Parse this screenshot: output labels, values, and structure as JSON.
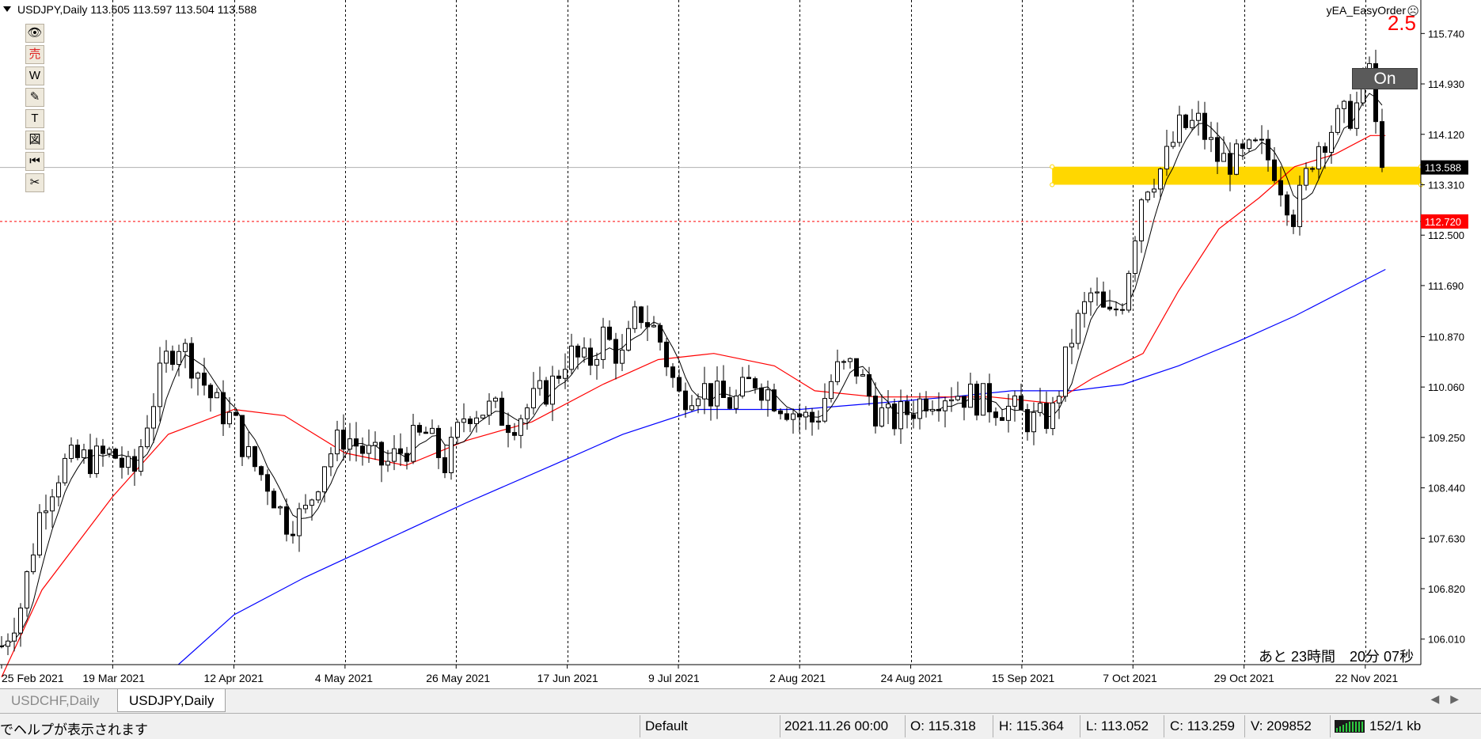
{
  "chart": {
    "symbol_header": "USDJPY,Daily  113.505 113.597 113.504 113.588",
    "ea_name": "yEA_EasyOrder",
    "lot_value": "2.5",
    "on_button": "On",
    "countdown": "あと 23時間　20分 07秒",
    "current_price_tag": "113.588",
    "line_price_tag": "112.720",
    "colors": {
      "bullish_body": "#ffffff",
      "bearish_body": "#000000",
      "ma_short": "#000000",
      "ma_mid": "#ff0000",
      "ma_long": "#0000ff",
      "zone": "#ffd700",
      "red_line": "#ff0000"
    }
  },
  "toolbox": [
    {
      "name": "eye-icon",
      "glyph": "👁"
    },
    {
      "name": "sell-icon",
      "glyph": "売"
    },
    {
      "name": "w-icon",
      "glyph": "W"
    },
    {
      "name": "pencil-icon",
      "glyph": "✎"
    },
    {
      "name": "text-icon",
      "glyph": "T"
    },
    {
      "name": "shape-icon",
      "glyph": "図"
    },
    {
      "name": "rewind-icon",
      "glyph": "⏮"
    },
    {
      "name": "scissors-icon",
      "glyph": "✂"
    }
  ],
  "chart_data": {
    "type": "candlestick",
    "price_axis": [
      "115.740",
      "114.930",
      "114.120",
      "113.310",
      "112.500",
      "111.690",
      "110.870",
      "110.060",
      "109.250",
      "108.440",
      "107.630",
      "106.820",
      "106.010"
    ],
    "ylim": [
      105.6,
      116.1
    ],
    "date_axis": [
      "25 Feb 2021",
      "19 Mar 2021",
      "12 Apr 2021",
      "4 May 2021",
      "26 May 2021",
      "17 Jun 2021",
      "9 Jul 2021",
      "2 Aug 2021",
      "24 Aug 2021",
      "15 Sep 2021",
      "7 Oct 2021",
      "29 Oct 2021",
      "22 Nov 2021"
    ],
    "close_path": [
      [
        "2021-02-25",
        105.9
      ],
      [
        "2021-03-01",
        106.6
      ],
      [
        "2021-03-05",
        108.2
      ],
      [
        "2021-03-09",
        108.8
      ],
      [
        "2021-03-12",
        108.9
      ],
      [
        "2021-03-16",
        108.9
      ],
      [
        "2021-03-19",
        109.0
      ],
      [
        "2021-03-23",
        108.6
      ],
      [
        "2021-03-26",
        109.6
      ],
      [
        "2021-03-30",
        110.6
      ],
      [
        "2021-04-01",
        110.8
      ],
      [
        "2021-04-05",
        110.3
      ],
      [
        "2021-04-08",
        109.8
      ],
      [
        "2021-04-12",
        109.5
      ],
      [
        "2021-04-15",
        108.9
      ],
      [
        "2021-04-19",
        108.5
      ],
      [
        "2021-04-22",
        107.9
      ],
      [
        "2021-04-26",
        108.0
      ],
      [
        "2021-04-30",
        108.9
      ],
      [
        "2021-05-04",
        109.3
      ],
      [
        "2021-05-08",
        109.0
      ],
      [
        "2021-05-12",
        108.8
      ],
      [
        "2021-05-16",
        109.1
      ],
      [
        "2021-05-20",
        109.3
      ],
      [
        "2021-05-24",
        108.8
      ],
      [
        "2021-05-28",
        109.7
      ],
      [
        "2021-06-02",
        109.7
      ],
      [
        "2021-06-06",
        109.5
      ],
      [
        "2021-06-10",
        109.8
      ],
      [
        "2021-06-14",
        110.1
      ],
      [
        "2021-06-17",
        110.6
      ],
      [
        "2021-06-21",
        110.4
      ],
      [
        "2021-06-24",
        110.9
      ],
      [
        "2021-06-28",
        110.5
      ],
      [
        "2021-07-01",
        111.3
      ],
      [
        "2021-07-05",
        110.9
      ],
      [
        "2021-07-09",
        109.9
      ],
      [
        "2021-07-13",
        110.1
      ],
      [
        "2021-07-16",
        109.9
      ],
      [
        "2021-07-20",
        109.8
      ],
      [
        "2021-07-24",
        110.2
      ],
      [
        "2021-07-28",
        109.9
      ],
      [
        "2021-08-02",
        109.6
      ],
      [
        "2021-08-05",
        109.5
      ],
      [
        "2021-08-09",
        110.3
      ],
      [
        "2021-08-13",
        110.4
      ],
      [
        "2021-08-17",
        109.7
      ],
      [
        "2021-08-20",
        109.5
      ],
      [
        "2021-08-24",
        109.7
      ],
      [
        "2021-08-27",
        109.9
      ],
      [
        "2021-09-01",
        110.0
      ],
      [
        "2021-09-05",
        109.9
      ],
      [
        "2021-09-09",
        109.8
      ],
      [
        "2021-09-13",
        109.7
      ],
      [
        "2021-09-17",
        109.5
      ],
      [
        "2021-09-21",
        109.6
      ],
      [
        "2021-09-25",
        110.9
      ],
      [
        "2021-09-29",
        111.6
      ],
      [
        "2021-10-02",
        111.1
      ],
      [
        "2021-10-05",
        111.5
      ],
      [
        "2021-10-09",
        113.3
      ],
      [
        "2021-10-13",
        113.6
      ],
      [
        "2021-10-16",
        114.2
      ],
      [
        "2021-10-20",
        114.3
      ],
      [
        "2021-10-24",
        113.7
      ],
      [
        "2021-10-28",
        113.7
      ],
      [
        "2021-11-01",
        113.9
      ],
      [
        "2021-11-04",
        113.6
      ],
      [
        "2021-11-08",
        112.8
      ],
      [
        "2021-11-12",
        113.9
      ],
      [
        "2021-11-16",
        114.3
      ],
      [
        "2021-11-20",
        114.5
      ],
      [
        "2021-11-23",
        115.3
      ],
      [
        "2021-11-25",
        113.2
      ],
      [
        "2021-11-26",
        113.588
      ]
    ],
    "ma_mid_path": [
      [
        "2021-02-25",
        105.4
      ],
      [
        "2021-03-05",
        106.8
      ],
      [
        "2021-03-19",
        108.3
      ],
      [
        "2021-03-30",
        109.3
      ],
      [
        "2021-04-12",
        109.7
      ],
      [
        "2021-04-22",
        109.6
      ],
      [
        "2021-05-04",
        109.0
      ],
      [
        "2021-05-16",
        108.8
      ],
      [
        "2021-05-28",
        109.2
      ],
      [
        "2021-06-10",
        109.5
      ],
      [
        "2021-06-24",
        110.1
      ],
      [
        "2021-07-05",
        110.5
      ],
      [
        "2021-07-16",
        110.6
      ],
      [
        "2021-07-28",
        110.4
      ],
      [
        "2021-08-05",
        110.0
      ],
      [
        "2021-08-17",
        109.9
      ],
      [
        "2021-08-27",
        109.9
      ],
      [
        "2021-09-09",
        109.9
      ],
      [
        "2021-09-21",
        109.8
      ],
      [
        "2021-09-29",
        110.2
      ],
      [
        "2021-10-09",
        110.6
      ],
      [
        "2021-10-16",
        111.6
      ],
      [
        "2021-10-24",
        112.6
      ],
      [
        "2021-11-01",
        113.1
      ],
      [
        "2021-11-08",
        113.6
      ],
      [
        "2021-11-16",
        113.8
      ],
      [
        "2021-11-23",
        114.1
      ],
      [
        "2021-11-26",
        114.1
      ]
    ],
    "ma_long_path": [
      [
        "2021-04-01",
        105.6
      ],
      [
        "2021-04-12",
        106.4
      ],
      [
        "2021-04-26",
        107.0
      ],
      [
        "2021-05-12",
        107.6
      ],
      [
        "2021-05-28",
        108.2
      ],
      [
        "2021-06-14",
        108.8
      ],
      [
        "2021-06-28",
        109.3
      ],
      [
        "2021-07-13",
        109.7
      ],
      [
        "2021-08-02",
        109.7
      ],
      [
        "2021-08-17",
        109.8
      ],
      [
        "2021-09-01",
        109.9
      ],
      [
        "2021-09-13",
        110.0
      ],
      [
        "2021-09-25",
        110.0
      ],
      [
        "2021-10-05",
        110.1
      ],
      [
        "2021-10-16",
        110.4
      ],
      [
        "2021-10-28",
        110.8
      ],
      [
        "2021-11-08",
        111.2
      ],
      [
        "2021-11-20",
        111.7
      ],
      [
        "2021-11-26",
        111.95
      ]
    ],
    "zone": {
      "from": "2021-09-21",
      "to": "2021-12-03",
      "top": 113.6,
      "bottom": 113.31
    },
    "current_price": 113.588,
    "red_line_price": 112.72,
    "vertical_grid": [
      "2021-03-19",
      "2021-04-12",
      "2021-05-04",
      "2021-05-26",
      "2021-06-17",
      "2021-07-09",
      "2021-08-02",
      "2021-08-24",
      "2021-09-15",
      "2021-10-07",
      "2021-10-29",
      "2021-11-22"
    ]
  },
  "tabs": [
    {
      "label": "USDCHF,Daily",
      "active": false
    },
    {
      "label": "USDJPY,Daily",
      "active": true
    }
  ],
  "status": {
    "help": "でヘルプが表示されます",
    "profile": "Default",
    "datetime": "2021.11.26 00:00",
    "open": "O: 115.318",
    "high": "H: 115.364",
    "low": "L: 113.052",
    "close": "C: 113.259",
    "volume": "V: 209852",
    "traffic": "152/1 kb"
  }
}
